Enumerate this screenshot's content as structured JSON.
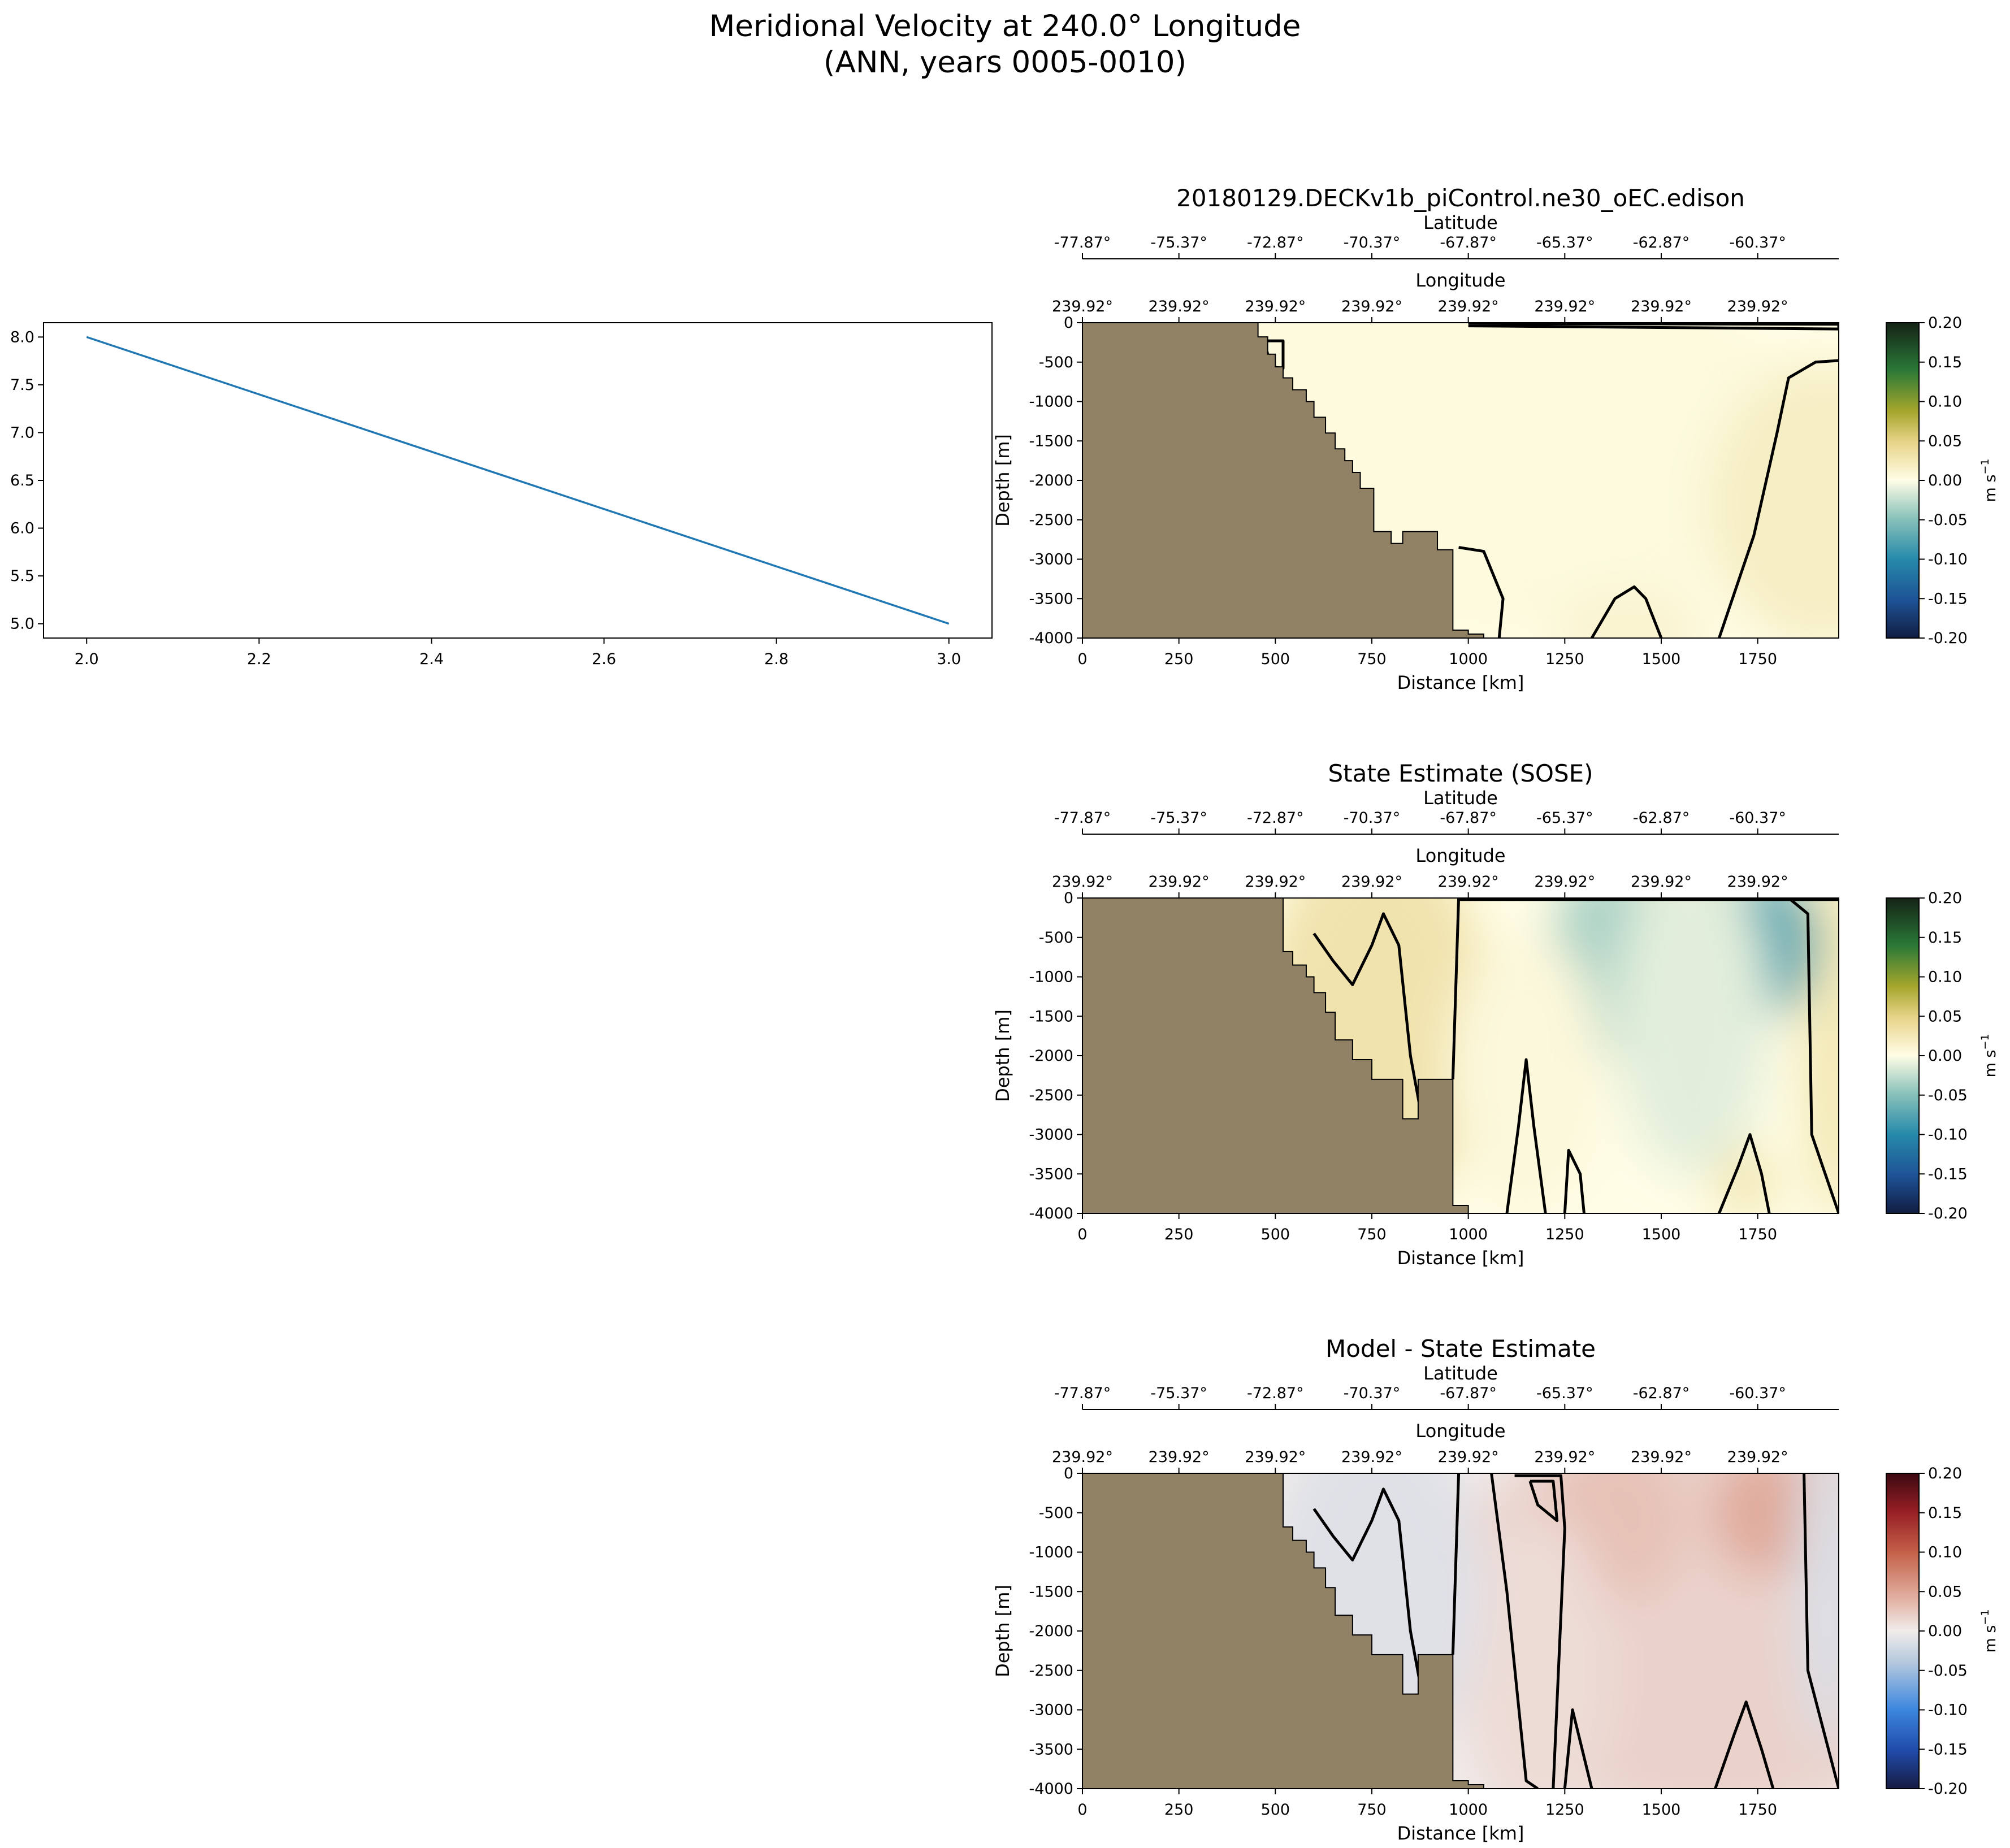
{
  "figure": {
    "suptitle_line1": "Meridional Velocity at 240.0° Longitude",
    "suptitle_line2": "(ANN, years 0005-0010)"
  },
  "colors": {
    "line": "#1f77b4",
    "land": "#918266",
    "contour": "#000000"
  },
  "chart_data": [
    {
      "type": "line",
      "id": "line-plot",
      "x": [
        2.0,
        3.0
      ],
      "y": [
        8.0,
        5.0
      ],
      "xlim": [
        1.95,
        3.05
      ],
      "ylim": [
        4.85,
        8.15
      ],
      "xticks": [
        2.0,
        2.2,
        2.4,
        2.6,
        2.8,
        3.0
      ],
      "yticks": [
        5.0,
        5.5,
        6.0,
        6.5,
        7.0,
        7.5,
        8.0
      ],
      "xtick_labels": [
        "2.0",
        "2.2",
        "2.4",
        "2.6",
        "2.8",
        "3.0"
      ],
      "ytick_labels": [
        "5.0",
        "5.5",
        "6.0",
        "6.5",
        "7.0",
        "7.5",
        "8.0"
      ],
      "title": "",
      "xlabel": "",
      "ylabel": ""
    },
    {
      "type": "heatmap",
      "id": "model",
      "title": "20180129.DECKv1b_piControl.ne30_oEC.edison",
      "cmap": "speed",
      "xlabel": "Distance [km]",
      "ylabel": "Depth [m]",
      "xlim": [
        0,
        1960
      ],
      "ylim": [
        -4000,
        0
      ],
      "xticks": [
        0,
        250,
        500,
        750,
        1000,
        1250,
        1500,
        1750
      ],
      "xtick_labels": [
        "0",
        "250",
        "500",
        "750",
        "1000",
        "1250",
        "1500",
        "1750"
      ],
      "yticks": [
        0,
        -500,
        -1000,
        -1500,
        -2000,
        -2500,
        -3000,
        -3500,
        -4000
      ],
      "ytick_labels": [
        "0",
        "-500",
        "-1000",
        "-1500",
        "-2000",
        "-2500",
        "-3000",
        "-3500",
        "-4000"
      ],
      "top_axis_lat_label": "Latitude",
      "lat_ticks": [
        "-77.87°",
        "-75.37°",
        "-72.87°",
        "-70.37°",
        "-67.87°",
        "-65.37°",
        "-62.87°",
        "-60.37°"
      ],
      "top_axis_lon_label": "Longitude",
      "lon_ticks": [
        "239.92°",
        "239.92°",
        "239.92°",
        "239.92°",
        "239.92°",
        "239.92°",
        "239.92°",
        "239.92°"
      ],
      "colorbar": {
        "label": "m s",
        "label_exp": "−1",
        "range": [
          -0.2,
          0.2
        ],
        "ticks": [
          "0.20",
          "0.15",
          "0.10",
          "0.05",
          "0.00",
          "-0.05",
          "-0.10",
          "-0.15",
          "-0.20"
        ]
      },
      "land_boundary": [
        [
          455,
          0
        ],
        [
          455,
          -180
        ],
        [
          480,
          -180
        ],
        [
          480,
          -400
        ],
        [
          500,
          -400
        ],
        [
          500,
          -560
        ],
        [
          520,
          -560
        ],
        [
          520,
          -700
        ],
        [
          545,
          -700
        ],
        [
          545,
          -850
        ],
        [
          580,
          -850
        ],
        [
          580,
          -1000
        ],
        [
          600,
          -1000
        ],
        [
          600,
          -1200
        ],
        [
          630,
          -1200
        ],
        [
          630,
          -1400
        ],
        [
          655,
          -1400
        ],
        [
          655,
          -1600
        ],
        [
          680,
          -1600
        ],
        [
          680,
          -1750
        ],
        [
          700,
          -1750
        ],
        [
          700,
          -1900
        ],
        [
          720,
          -1900
        ],
        [
          720,
          -2100
        ],
        [
          755,
          -2100
        ],
        [
          755,
          -2650
        ],
        [
          800,
          -2650
        ],
        [
          800,
          -2800
        ],
        [
          830,
          -2800
        ],
        [
          830,
          -2650
        ],
        [
          920,
          -2650
        ],
        [
          920,
          -2880
        ],
        [
          960,
          -2880
        ],
        [
          960,
          -3900
        ],
        [
          1000,
          -3900
        ],
        [
          1000,
          -3950
        ],
        [
          1040,
          -3950
        ],
        [
          1040,
          -4000
        ]
      ],
      "field": [
        {
          "cx": 1000,
          "cy": -1500,
          "rx": 900,
          "ry": 2500,
          "v": 0.004
        },
        {
          "cx": 1920,
          "cy": -2300,
          "rx": 300,
          "ry": 1800,
          "v": 0.018
        },
        {
          "cx": 1420,
          "cy": -3900,
          "rx": 200,
          "ry": 500,
          "v": 0.012
        }
      ],
      "contours": [
        [
          [
            1000,
            -10
          ],
          [
            1960,
            -20
          ],
          [
            1960,
            -80
          ],
          [
            1000,
            -40
          ]
        ],
        [
          [
            1960,
            -480
          ],
          [
            1900,
            -500
          ],
          [
            1830,
            -700
          ],
          [
            1800,
            -1400
          ],
          [
            1740,
            -2700
          ],
          [
            1650,
            -4000
          ]
        ],
        [
          [
            975,
            -2850
          ],
          [
            1040,
            -2900
          ],
          [
            1090,
            -3500
          ],
          [
            1080,
            -4000
          ]
        ],
        [
          [
            1320,
            -4000
          ],
          [
            1380,
            -3500
          ],
          [
            1430,
            -3350
          ],
          [
            1460,
            -3500
          ],
          [
            1500,
            -4000
          ]
        ],
        [
          [
            470,
            -230
          ],
          [
            520,
            -230
          ],
          [
            520,
            -580
          ],
          [
            490,
            -560
          ],
          [
            470,
            -230
          ]
        ]
      ]
    },
    {
      "type": "heatmap",
      "id": "obs",
      "title": "State Estimate (SOSE)",
      "cmap": "speed",
      "xlabel": "Distance [km]",
      "ylabel": "Depth [m]",
      "xlim": [
        0,
        1960
      ],
      "ylim": [
        -4000,
        0
      ],
      "xticks": [
        0,
        250,
        500,
        750,
        1000,
        1250,
        1500,
        1750
      ],
      "xtick_labels": [
        "0",
        "250",
        "500",
        "750",
        "1000",
        "1250",
        "1500",
        "1750"
      ],
      "yticks": [
        0,
        -500,
        -1000,
        -1500,
        -2000,
        -2500,
        -3000,
        -3500,
        -4000
      ],
      "ytick_labels": [
        "0",
        "-500",
        "-1000",
        "-1500",
        "-2000",
        "-2500",
        "-3000",
        "-3500",
        "-4000"
      ],
      "top_axis_lat_label": "Latitude",
      "lat_ticks": [
        "-77.87°",
        "-75.37°",
        "-72.87°",
        "-70.37°",
        "-67.87°",
        "-65.37°",
        "-62.87°",
        "-60.37°"
      ],
      "top_axis_lon_label": "Longitude",
      "lon_ticks": [
        "239.92°",
        "239.92°",
        "239.92°",
        "239.92°",
        "239.92°",
        "239.92°",
        "239.92°",
        "239.92°"
      ],
      "colorbar": {
        "label": "m s",
        "label_exp": "−1",
        "range": [
          -0.2,
          0.2
        ],
        "ticks": [
          "0.20",
          "0.15",
          "0.10",
          "0.05",
          "0.00",
          "-0.05",
          "-0.10",
          "-0.15",
          "-0.20"
        ]
      },
      "land_boundary": [
        [
          520,
          0
        ],
        [
          520,
          -680
        ],
        [
          545,
          -680
        ],
        [
          545,
          -850
        ],
        [
          580,
          -850
        ],
        [
          580,
          -1000
        ],
        [
          600,
          -1000
        ],
        [
          600,
          -1200
        ],
        [
          630,
          -1200
        ],
        [
          630,
          -1450
        ],
        [
          655,
          -1450
        ],
        [
          655,
          -1800
        ],
        [
          700,
          -1800
        ],
        [
          700,
          -2050
        ],
        [
          750,
          -2050
        ],
        [
          750,
          -2300
        ],
        [
          830,
          -2300
        ],
        [
          830,
          -2800
        ],
        [
          870,
          -2800
        ],
        [
          870,
          -2300
        ],
        [
          960,
          -2300
        ],
        [
          960,
          -3900
        ],
        [
          1000,
          -3900
        ],
        [
          1000,
          -4000
        ]
      ],
      "field": [
        {
          "cx": 760,
          "cy": -1600,
          "rx": 300,
          "ry": 2400,
          "v": 0.03
        },
        {
          "cx": 1950,
          "cy": -1800,
          "rx": 90,
          "ry": 2300,
          "v": 0.025
        },
        {
          "cx": 1360,
          "cy": -800,
          "rx": 150,
          "ry": 1200,
          "v": -0.035
        },
        {
          "cx": 1770,
          "cy": -600,
          "rx": 140,
          "ry": 900,
          "v": -0.07
        },
        {
          "cx": 1580,
          "cy": -1500,
          "rx": 200,
          "ry": 2000,
          "v": -0.012
        },
        {
          "cx": 1150,
          "cy": -2200,
          "rx": 200,
          "ry": 1800,
          "v": 0.006
        },
        {
          "cx": 1720,
          "cy": -3600,
          "rx": 80,
          "ry": 500,
          "v": 0.025
        }
      ],
      "contours": [
        [
          [
            975,
            -20
          ],
          [
            1960,
            -20
          ]
        ],
        [
          [
            975,
            0
          ],
          [
            960,
            -2300
          ]
        ],
        [
          [
            1830,
            0
          ],
          [
            1880,
            -200
          ],
          [
            1890,
            -3000
          ],
          [
            1960,
            -4000
          ]
        ],
        [
          [
            600,
            -450
          ],
          [
            650,
            -800
          ],
          [
            700,
            -1100
          ],
          [
            750,
            -600
          ],
          [
            780,
            -200
          ],
          [
            820,
            -600
          ],
          [
            850,
            -2000
          ],
          [
            880,
            -2800
          ]
        ],
        [
          [
            1100,
            -4000
          ],
          [
            1130,
            -2900
          ],
          [
            1150,
            -2050
          ],
          [
            1170,
            -2900
          ],
          [
            1200,
            -4000
          ]
        ],
        [
          [
            1250,
            -4000
          ],
          [
            1260,
            -3200
          ],
          [
            1290,
            -3500
          ],
          [
            1300,
            -4000
          ]
        ],
        [
          [
            1650,
            -4000
          ],
          [
            1700,
            -3400
          ],
          [
            1730,
            -3000
          ],
          [
            1760,
            -3500
          ],
          [
            1780,
            -4000
          ]
        ]
      ]
    },
    {
      "type": "heatmap",
      "id": "diff",
      "title": "Model - State Estimate",
      "cmap": "balance",
      "xlabel": "Distance [km]",
      "ylabel": "Depth [m]",
      "xlim": [
        0,
        1960
      ],
      "ylim": [
        -4000,
        0
      ],
      "xticks": [
        0,
        250,
        500,
        750,
        1000,
        1250,
        1500,
        1750
      ],
      "xtick_labels": [
        "0",
        "250",
        "500",
        "750",
        "1000",
        "1250",
        "1500",
        "1750"
      ],
      "yticks": [
        0,
        -500,
        -1000,
        -1500,
        -2000,
        -2500,
        -3000,
        -3500,
        -4000
      ],
      "ytick_labels": [
        "0",
        "-500",
        "-1000",
        "-1500",
        "-2000",
        "-2500",
        "-3000",
        "-3500",
        "-4000"
      ],
      "top_axis_lat_label": "Latitude",
      "lat_ticks": [
        "-77.87°",
        "-75.37°",
        "-72.87°",
        "-70.37°",
        "-67.87°",
        "-65.37°",
        "-62.87°",
        "-60.37°"
      ],
      "top_axis_lon_label": "Longitude",
      "lon_ticks": [
        "239.92°",
        "239.92°",
        "239.92°",
        "239.92°",
        "239.92°",
        "239.92°",
        "239.92°",
        "239.92°"
      ],
      "colorbar": {
        "label": "m s",
        "label_exp": "−1",
        "range": [
          -0.2,
          0.2
        ],
        "ticks": [
          "0.20",
          "0.15",
          "0.10",
          "0.05",
          "0.00",
          "-0.05",
          "-0.10",
          "-0.15",
          "-0.20"
        ]
      },
      "land_boundary": [
        [
          520,
          0
        ],
        [
          520,
          -680
        ],
        [
          545,
          -680
        ],
        [
          545,
          -850
        ],
        [
          580,
          -850
        ],
        [
          580,
          -1000
        ],
        [
          600,
          -1000
        ],
        [
          600,
          -1200
        ],
        [
          630,
          -1200
        ],
        [
          630,
          -1450
        ],
        [
          655,
          -1450
        ],
        [
          655,
          -1800
        ],
        [
          700,
          -1800
        ],
        [
          700,
          -2050
        ],
        [
          750,
          -2050
        ],
        [
          750,
          -2300
        ],
        [
          830,
          -2300
        ],
        [
          830,
          -2800
        ],
        [
          870,
          -2800
        ],
        [
          870,
          -2300
        ],
        [
          960,
          -2300
        ],
        [
          960,
          -3900
        ],
        [
          1000,
          -3900
        ],
        [
          1000,
          -3950
        ],
        [
          1040,
          -3950
        ],
        [
          1040,
          -4000
        ]
      ],
      "field": [
        {
          "cx": 1620,
          "cy": -1800,
          "rx": 700,
          "ry": 2600,
          "v": 0.018
        },
        {
          "cx": 1770,
          "cy": -500,
          "rx": 140,
          "ry": 800,
          "v": 0.045
        },
        {
          "cx": 1380,
          "cy": -600,
          "rx": 180,
          "ry": 1000,
          "v": 0.03
        },
        {
          "cx": 1180,
          "cy": -2500,
          "rx": 200,
          "ry": 2000,
          "v": 0.012
        },
        {
          "cx": 760,
          "cy": -1500,
          "rx": 280,
          "ry": 2200,
          "v": -0.012
        },
        {
          "cx": 1930,
          "cy": -1500,
          "rx": 80,
          "ry": 2000,
          "v": -0.015
        }
      ],
      "contours": [
        [
          [
            975,
            0
          ],
          [
            960,
            -2300
          ]
        ],
        [
          [
            1060,
            0
          ],
          [
            1100,
            -1500
          ],
          [
            1150,
            -3900
          ],
          [
            1180,
            -4000
          ]
        ],
        [
          [
            1120,
            -30
          ],
          [
            1240,
            -30
          ],
          [
            1250,
            -700
          ],
          [
            1220,
            -4000
          ]
        ],
        [
          [
            1160,
            -100
          ],
          [
            1220,
            -100
          ],
          [
            1230,
            -600
          ],
          [
            1180,
            -400
          ],
          [
            1160,
            -100
          ]
        ],
        [
          [
            1870,
            0
          ],
          [
            1880,
            -2500
          ],
          [
            1960,
            -4000
          ]
        ],
        [
          [
            600,
            -450
          ],
          [
            650,
            -800
          ],
          [
            700,
            -1100
          ],
          [
            750,
            -600
          ],
          [
            780,
            -200
          ],
          [
            820,
            -600
          ],
          [
            850,
            -2000
          ],
          [
            880,
            -2800
          ]
        ],
        [
          [
            1640,
            -4000
          ],
          [
            1690,
            -3300
          ],
          [
            1720,
            -2900
          ],
          [
            1760,
            -3500
          ],
          [
            1790,
            -4000
          ]
        ],
        [
          [
            1250,
            -4000
          ],
          [
            1270,
            -3000
          ],
          [
            1300,
            -3600
          ],
          [
            1320,
            -4000
          ]
        ]
      ]
    }
  ]
}
